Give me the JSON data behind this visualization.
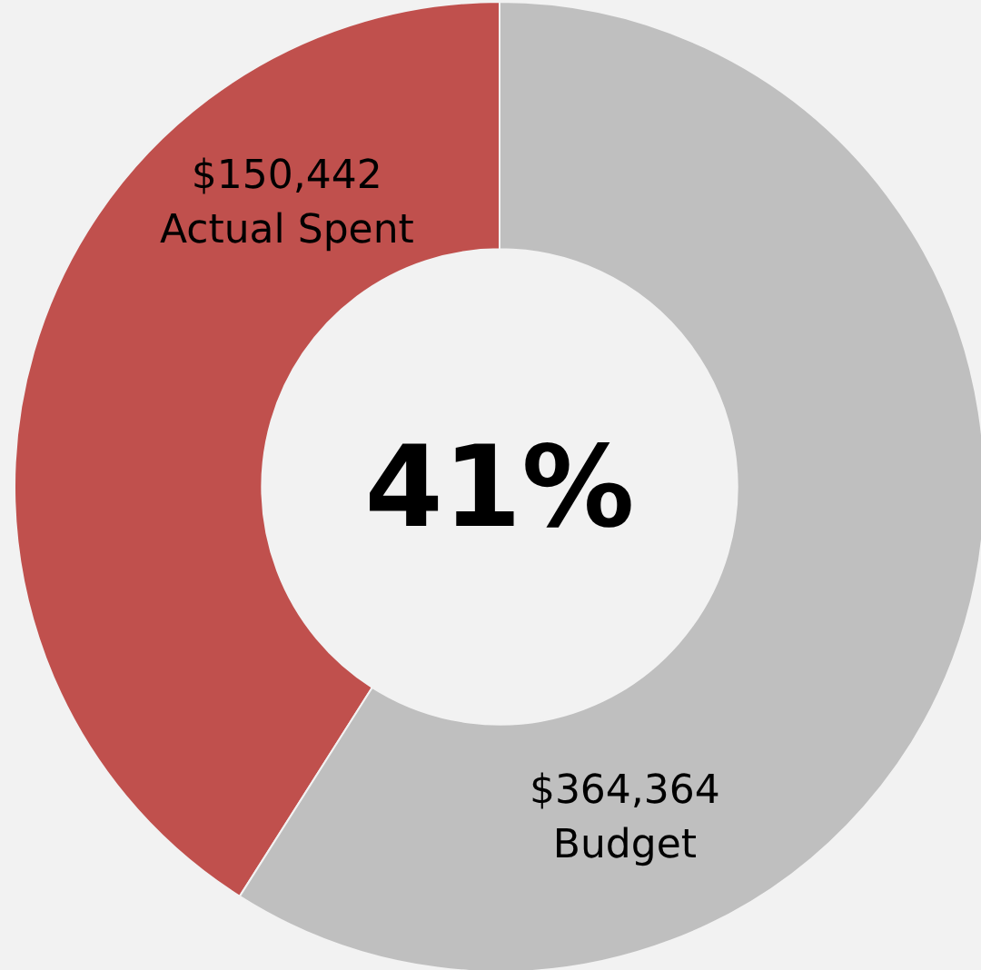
{
  "chart_data": {
    "type": "donut",
    "categories": [
      "Actual Spent",
      "Budget"
    ],
    "values": [
      41,
      59
    ],
    "colors": [
      "#c0504d",
      "#bfbfbf"
    ],
    "annotations": [
      "41%",
      "$150,442",
      "$364,364"
    ],
    "legend": false
  }
}
